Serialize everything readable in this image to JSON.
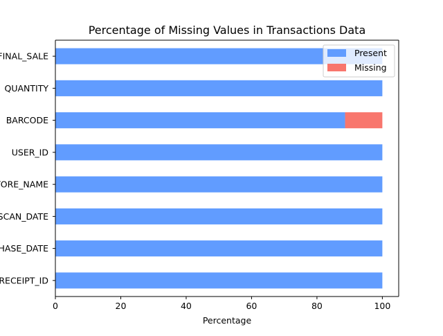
{
  "chart_data": {
    "type": "bar",
    "orientation": "horizontal",
    "stacked": true,
    "title": "Percentage of Missing Values in Transactions Data",
    "xlabel": "Percentage",
    "ylabel": "",
    "xlim": [
      0,
      105
    ],
    "x_ticks": [
      0,
      20,
      40,
      60,
      80,
      100
    ],
    "categories": [
      "RECEIPT_ID",
      "PURCHASE_DATE",
      "SCAN_DATE",
      "STORE_NAME",
      "USER_ID",
      "BARCODE",
      "QUANTITY",
      "FINAL_SALE"
    ],
    "series": [
      {
        "name": "Present",
        "color": "#619cff",
        "values": [
          100,
          100,
          100,
          100,
          100,
          88.6,
          100,
          100
        ]
      },
      {
        "name": "Missing",
        "color": "#f8766d",
        "values": [
          0,
          0,
          0,
          0,
          0,
          11.4,
          0,
          0
        ]
      }
    ],
    "legend": {
      "position": "top-right",
      "entries": [
        "Present",
        "Missing"
      ]
    },
    "grid": false
  }
}
